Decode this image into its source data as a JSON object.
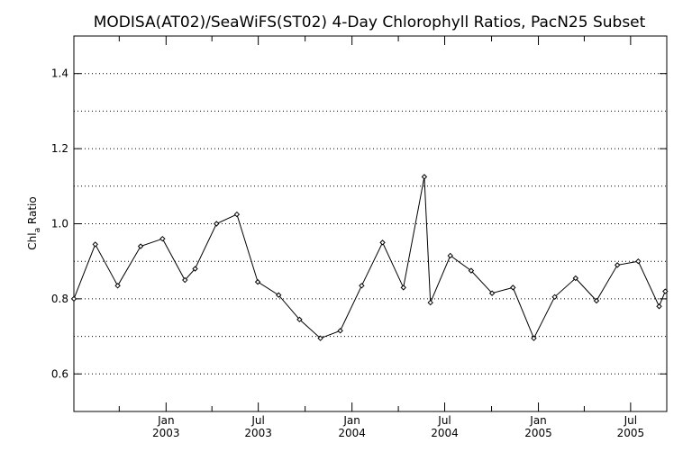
{
  "chart_data": {
    "type": "line",
    "title": "MODISA(AT02)/SeaWiFS(ST02) 4-Day Chlorophyll Ratios, PacN25 Subset",
    "ylabel": {
      "main": "Chl",
      "subscript": "a",
      "suffix": " Ratio"
    },
    "xlabel": "",
    "xlim": [
      "2002-07-04",
      "2005-09-10"
    ],
    "ylim": [
      0.5,
      1.5
    ],
    "yticks": [
      {
        "value": 0.6,
        "label": "0.6"
      },
      {
        "value": 0.8,
        "label": "0.8"
      },
      {
        "value": 1.0,
        "label": "1.0"
      },
      {
        "value": 1.2,
        "label": "1.2"
      },
      {
        "value": 1.4,
        "label": "1.4"
      }
    ],
    "grid": {
      "y_dotted_step": 0.1
    },
    "xticks": [
      {
        "date": "2003-01-01",
        "month": "Jan",
        "year": "2003"
      },
      {
        "date": "2003-07-01",
        "month": "Jul",
        "year": "2003"
      },
      {
        "date": "2004-01-01",
        "month": "Jan",
        "year": "2004"
      },
      {
        "date": "2004-07-01",
        "month": "Jul",
        "year": "2004"
      },
      {
        "date": "2005-01-01",
        "month": "Jan",
        "year": "2005"
      },
      {
        "date": "2005-07-01",
        "month": "Jul",
        "year": "2005"
      }
    ],
    "xminor_ticks": [
      "2002-10-01",
      "2003-04-01",
      "2003-10-01",
      "2004-04-01",
      "2004-10-01",
      "2005-04-01"
    ],
    "series": [
      {
        "line_color": "#000000",
        "marker": "diamond",
        "points": [
          {
            "x": "2002-07-04",
            "y": 0.8
          },
          {
            "x": "2002-08-15",
            "y": 0.945
          },
          {
            "x": "2002-09-28",
            "y": 0.835
          },
          {
            "x": "2002-11-12",
            "y": 0.94
          },
          {
            "x": "2002-12-25",
            "y": 0.96
          },
          {
            "x": "2003-02-07",
            "y": 0.85
          },
          {
            "x": "2003-02-27",
            "y": 0.88
          },
          {
            "x": "2003-04-10",
            "y": 1.0
          },
          {
            "x": "2003-05-20",
            "y": 1.025
          },
          {
            "x": "2003-06-30",
            "y": 0.845
          },
          {
            "x": "2003-08-10",
            "y": 0.81
          },
          {
            "x": "2003-09-20",
            "y": 0.745
          },
          {
            "x": "2003-10-31",
            "y": 0.695
          },
          {
            "x": "2003-12-09",
            "y": 0.715
          },
          {
            "x": "2004-01-20",
            "y": 0.835
          },
          {
            "x": "2004-03-01",
            "y": 0.95
          },
          {
            "x": "2004-04-11",
            "y": 0.83
          },
          {
            "x": "2004-05-22",
            "y": 1.125
          },
          {
            "x": "2004-06-03",
            "y": 0.79
          },
          {
            "x": "2004-07-12",
            "y": 0.915
          },
          {
            "x": "2004-08-22",
            "y": 0.875
          },
          {
            "x": "2004-10-02",
            "y": 0.815
          },
          {
            "x": "2004-11-12",
            "y": 0.83
          },
          {
            "x": "2004-12-23",
            "y": 0.695
          },
          {
            "x": "2005-02-02",
            "y": 0.805
          },
          {
            "x": "2005-03-15",
            "y": 0.855
          },
          {
            "x": "2005-04-25",
            "y": 0.795
          },
          {
            "x": "2005-06-05",
            "y": 0.89
          },
          {
            "x": "2005-07-16",
            "y": 0.9
          },
          {
            "x": "2005-08-26",
            "y": 0.78
          },
          {
            "x": "2005-09-07",
            "y": 0.82
          }
        ]
      }
    ]
  }
}
